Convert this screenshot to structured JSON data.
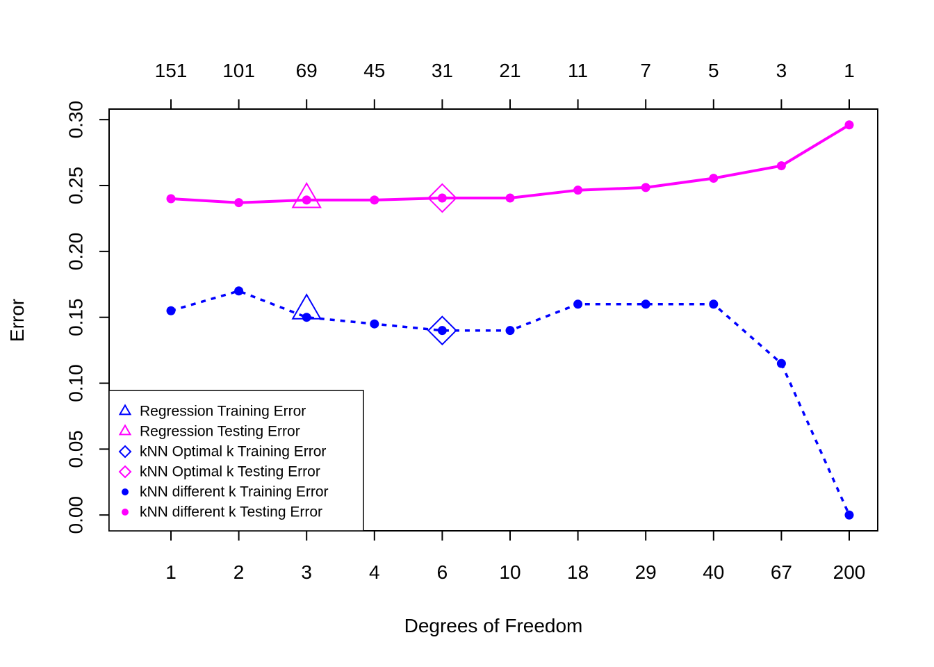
{
  "chart_data": {
    "type": "line",
    "xlabel": "Degrees of Freedom",
    "ylabel": "Error",
    "ylim": [
      -0.012,
      0.308
    ],
    "y_ticks": [
      "0.00",
      "0.05",
      "0.10",
      "0.15",
      "0.20",
      "0.25",
      "0.30"
    ],
    "y_tick_values": [
      0,
      0.05,
      0.1,
      0.15,
      0.2,
      0.25,
      0.3
    ],
    "x_bottom_ticks": [
      "1",
      "2",
      "3",
      "4",
      "6",
      "10",
      "18",
      "29",
      "40",
      "67",
      "200"
    ],
    "x_top_ticks": [
      "151",
      "101",
      "69",
      "45",
      "31",
      "21",
      "11",
      "7",
      "5",
      "3",
      "1"
    ],
    "grid": false,
    "legend_position": "bottom-left",
    "series": [
      {
        "name": "kNN different k Training Error",
        "color": "#0000ff",
        "line": "dotted",
        "marker": "filled-circle",
        "values": [
          0.155,
          0.17,
          0.15,
          0.145,
          0.14,
          0.14,
          0.16,
          0.16,
          0.16,
          0.115,
          0.0
        ]
      },
      {
        "name": "kNN different k Testing Error",
        "color": "#ff00ff",
        "line": "solid",
        "marker": "filled-circle",
        "values": [
          0.24,
          0.237,
          0.239,
          0.239,
          0.2405,
          0.2405,
          0.2465,
          0.2485,
          0.2555,
          0.265,
          0.296
        ]
      }
    ],
    "highlights": [
      {
        "name": "Regression Training Error",
        "marker": "triangle",
        "color": "#0000ff",
        "x_index": 2,
        "value": 0.155
      },
      {
        "name": "Regression Testing Error",
        "marker": "triangle",
        "color": "#ff00ff",
        "x_index": 2,
        "value": 0.2395
      },
      {
        "name": "kNN Optimal k Training Error",
        "marker": "diamond",
        "color": "#0000ff",
        "x_index": 4,
        "value": 0.14
      },
      {
        "name": "kNN Optimal k Testing Error",
        "marker": "diamond",
        "color": "#ff00ff",
        "x_index": 4,
        "value": 0.2405
      }
    ],
    "legend": [
      {
        "label": "Regression Training Error",
        "marker": "triangle",
        "color": "#0000ff"
      },
      {
        "label": "Regression Testing Error",
        "marker": "triangle",
        "color": "#ff00ff"
      },
      {
        "label": "kNN Optimal k Training Error",
        "marker": "diamond",
        "color": "#0000ff"
      },
      {
        "label": "kNN Optimal k Testing Error",
        "marker": "diamond",
        "color": "#ff00ff"
      },
      {
        "label": "kNN different k Training Error",
        "marker": "filled-circle",
        "color": "#0000ff"
      },
      {
        "label": "kNN different k Testing Error",
        "marker": "filled-circle",
        "color": "#ff00ff"
      }
    ]
  }
}
